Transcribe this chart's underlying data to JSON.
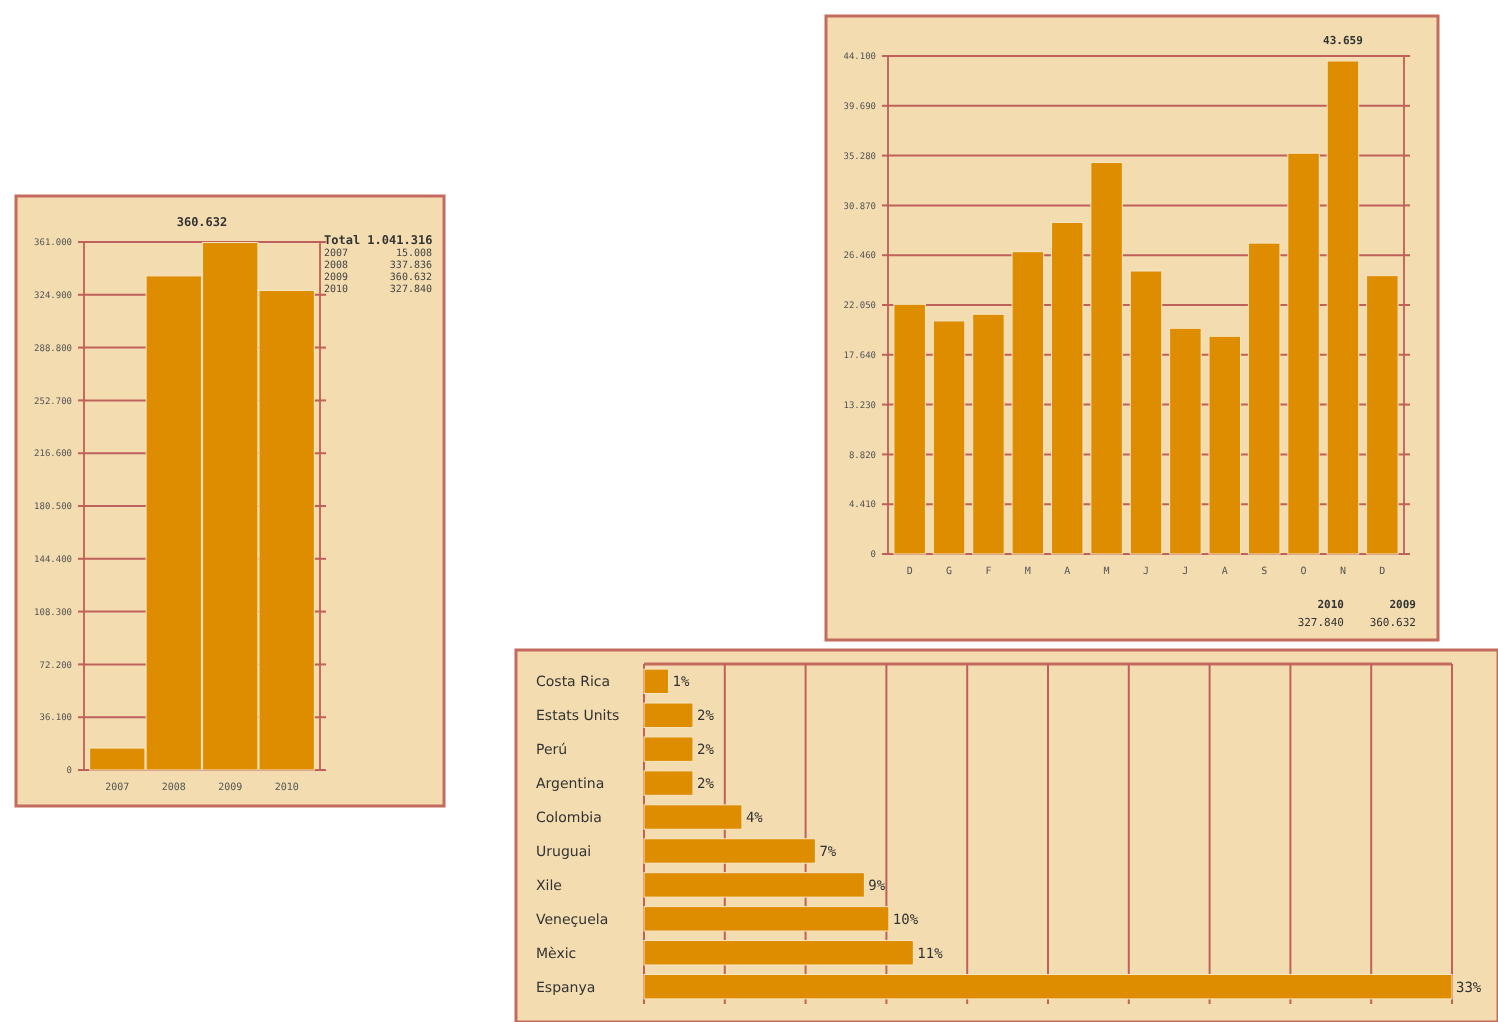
{
  "chart_data": [
    {
      "type": "bar",
      "categories": [
        "2007",
        "2008",
        "2009",
        "2010"
      ],
      "values": [
        15008,
        337836,
        360632,
        327840
      ],
      "color": "#de8c00",
      "ylim": [
        0,
        361000
      ],
      "yticks": [
        0,
        {
          "value": 36100,
          "label": "36.100"
        },
        {
          "value": 72200,
          "label": "72.200"
        },
        {
          "value": 108300,
          "label": "108.300"
        },
        {
          "value": 144400,
          "label": "144.400"
        },
        {
          "value": 180500,
          "label": "180.500"
        },
        {
          "value": 216600,
          "label": "216.600"
        },
        {
          "value": 252700,
          "label": "252.700"
        },
        {
          "value": 288800,
          "label": "288.800"
        },
        {
          "value": 324900,
          "label": "324.900"
        },
        {
          "value": 361000,
          "label": "361.000"
        }
      ],
      "grid": "y",
      "annotations": [
        "360.632",
        "Total 1.041.316",
        "2007",
        "15.008",
        "2008",
        "337.836",
        "2009",
        "360.632",
        "2010",
        "327.840"
      ]
    },
    {
      "type": "bar",
      "categories": [
        "D",
        "G",
        "F",
        "M",
        "A",
        "M",
        "J",
        "J",
        "A",
        "S",
        "O",
        "N",
        "D"
      ],
      "values": [
        22110,
        20640,
        21230,
        26770,
        29360,
        34670,
        25060,
        19990,
        19280,
        27530,
        35490,
        43659,
        24650
      ],
      "color": "#de8c00",
      "ylim": [
        0,
        44100
      ],
      "yticks": [
        0,
        {
          "value": 4410,
          "label": "4.410"
        },
        {
          "value": 8820,
          "label": "8.820"
        },
        {
          "value": 13230,
          "label": "13.230"
        },
        {
          "value": 17640,
          "label": "17.640"
        },
        {
          "value": 22050,
          "label": "22.050"
        },
        {
          "value": 26460,
          "label": "26.460"
        },
        {
          "value": 30870,
          "label": "30.870"
        },
        {
          "value": 35280,
          "label": "35.280"
        },
        {
          "value": 39690,
          "label": "39.690"
        },
        {
          "value": 44100,
          "label": "44.100"
        }
      ],
      "grid": "y",
      "annotations": [
        "43.659",
        "2010",
        "327.840",
        "2009",
        "360.632"
      ]
    },
    {
      "type": "bar",
      "orientation": "horizontal",
      "categories": [
        "Costa Rica",
        "Estats Units",
        "Perú",
        "Argentina",
        "Colombia",
        "Uruguai",
        "Xile",
        "Veneçuela",
        "Mèxic",
        "Espanya"
      ],
      "values": [
        1,
        2,
        2,
        2,
        4,
        7,
        9,
        10,
        11,
        33
      ],
      "value_labels": [
        "1%",
        "2%",
        "2%",
        "2%",
        "4%",
        "7%",
        "9%",
        "10%",
        "11%",
        "33%"
      ],
      "color": "#de8c00",
      "xlim": [
        0,
        33
      ],
      "xticks": [
        {
          "value": 0,
          "label": null
        },
        {
          "value": 3.3,
          "label": null
        },
        {
          "value": 6.6,
          "label": null
        },
        {
          "value": 9.9,
          "label": null
        },
        {
          "value": 13.2,
          "label": null
        },
        {
          "value": 16.5,
          "label": null
        },
        {
          "value": 19.8,
          "label": null
        },
        {
          "value": 23.1,
          "label": null
        },
        {
          "value": 26.4,
          "label": null
        },
        {
          "value": 29.7,
          "label": null
        },
        {
          "value": 33,
          "label": null
        }
      ],
      "grid": "x"
    }
  ]
}
